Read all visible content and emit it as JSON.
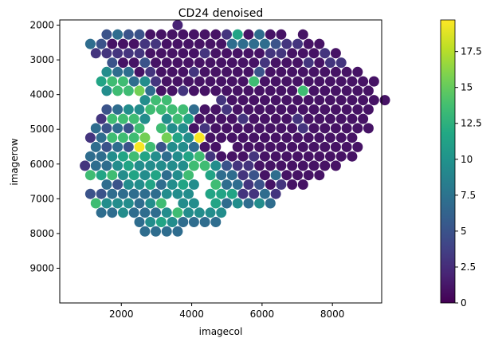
{
  "chart_data": {
    "type": "scatter",
    "title": "CD24 denoised",
    "xlabel": "imagecol",
    "ylabel": "imagerow",
    "xlim": [
      250,
      9400
    ],
    "ylim": [
      10000,
      1850
    ],
    "y_inverted": true,
    "x_ticks": [
      2000,
      4000,
      6000,
      8000
    ],
    "y_ticks": [
      2000,
      3000,
      4000,
      5000,
      6000,
      7000,
      8000,
      9000
    ],
    "colormap": "viridis",
    "colorbar": {
      "min": 0,
      "max": 19.7,
      "ticks": [
        0,
        2.5,
        5,
        7.5,
        10,
        12.5,
        15,
        17.5
      ]
    },
    "grid": false,
    "grid_layout": {
      "row_start": 2000,
      "row_step": 270,
      "col_step": 310,
      "odd_row_offset": 155,
      "rows": [
        "..........X..........",
        "...34331111111261411.1",
        "..4311122111111444432211",
        "..22222111112111112211121",
        "....3113111111111121112122",
        "...544121112111113111111111",
        "...67745211111111711111111111",
        "...5778411211111111117111111",
        ".......577....2111111111111111",
        "...3455777741121111111111111",
        "...27775.5761111211112111111",
        "..43437.75512111111112111111",
        "..247778.865911111111111111",
        "..434397355411.111111111111",
        "..4456765456721112111111111",
        ".244565555577532211111111",
        "..7675656457.64423141111",
        "...435564565.744231211",
        "..3344444555.6662242",
        "..7555457.55.645454",
        "...445444575555",
        "......45654444",
        ".......4444"
      ]
    }
  }
}
